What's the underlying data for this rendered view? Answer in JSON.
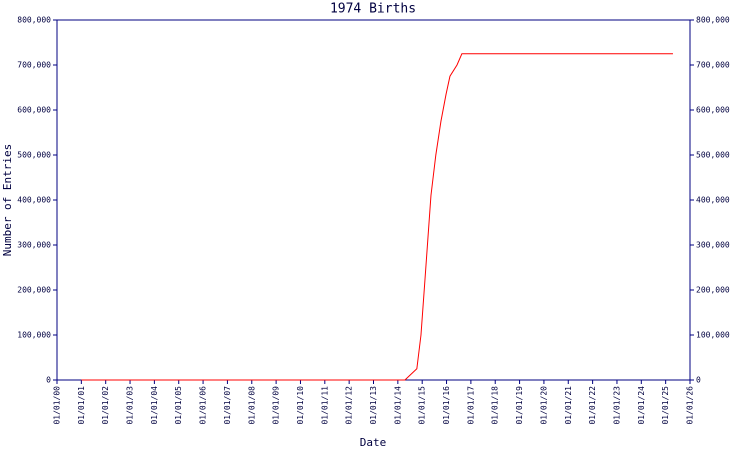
{
  "chart_data": {
    "type": "line",
    "title": "1974 Births",
    "xlabel": "Date",
    "ylabel": "Number of Entries",
    "x": [
      2001.0,
      2014.29,
      2014.78,
      2014.95,
      2015.11,
      2015.36,
      2015.56,
      2015.77,
      2015.98,
      2016.14,
      2016.43,
      2016.63,
      2025.3
    ],
    "values": [
      0,
      0,
      25000,
      100000,
      220000,
      410000,
      500000,
      575000,
      635000,
      675000,
      700000,
      725000,
      725000
    ],
    "color": "#ff0000",
    "xlim": [
      2000,
      2026
    ],
    "xticks": [
      {
        "value": 2000,
        "label": "01/01/00"
      },
      {
        "value": 2001,
        "label": "01/01/01"
      },
      {
        "value": 2002,
        "label": "01/01/02"
      },
      {
        "value": 2003,
        "label": "01/01/03"
      },
      {
        "value": 2004,
        "label": "01/01/04"
      },
      {
        "value": 2005,
        "label": "01/01/05"
      },
      {
        "value": 2006,
        "label": "01/01/06"
      },
      {
        "value": 2007,
        "label": "01/01/07"
      },
      {
        "value": 2008,
        "label": "01/01/08"
      },
      {
        "value": 2009,
        "label": "01/01/09"
      },
      {
        "value": 2010,
        "label": "01/01/10"
      },
      {
        "value": 2011,
        "label": "01/01/11"
      },
      {
        "value": 2012,
        "label": "01/01/12"
      },
      {
        "value": 2013,
        "label": "01/01/13"
      },
      {
        "value": 2014,
        "label": "01/01/14"
      },
      {
        "value": 2015,
        "label": "01/01/15"
      },
      {
        "value": 2016,
        "label": "01/01/16"
      },
      {
        "value": 2017,
        "label": "01/01/17"
      },
      {
        "value": 2018,
        "label": "01/01/18"
      },
      {
        "value": 2019,
        "label": "01/01/19"
      },
      {
        "value": 2020,
        "label": "01/01/20"
      },
      {
        "value": 2021,
        "label": "01/01/21"
      },
      {
        "value": 2022,
        "label": "01/01/22"
      },
      {
        "value": 2023,
        "label": "01/01/23"
      },
      {
        "value": 2024,
        "label": "01/01/24"
      },
      {
        "value": 2025,
        "label": "01/01/25"
      },
      {
        "value": 2026,
        "label": "01/01/26"
      }
    ],
    "ylim": [
      0,
      800000
    ],
    "yticks": [
      0,
      {
        "value": 100000,
        "label": "100,000"
      },
      {
        "value": 200000,
        "label": "200,000"
      },
      {
        "value": 300000,
        "label": "300,000"
      },
      {
        "value": 400000,
        "label": "400,000"
      },
      {
        "value": 500000,
        "label": "500,000"
      },
      {
        "value": 600000,
        "label": "600,000"
      },
      {
        "value": 700000,
        "label": "700,000"
      },
      {
        "value": 800000,
        "label": "800,000"
      }
    ],
    "y2lim": [
      0,
      800000
    ],
    "y2ticks": [
      0,
      {
        "value": 100000,
        "label": "100,000"
      },
      {
        "value": 200000,
        "label": "200,000"
      },
      {
        "value": 300000,
        "label": "300,000"
      },
      {
        "value": 400000,
        "label": "400,000"
      },
      {
        "value": 500000,
        "label": "500,000"
      },
      {
        "value": 600000,
        "label": "600,000"
      },
      {
        "value": 700000,
        "label": "700,000"
      },
      {
        "value": 800000,
        "label": "800,000"
      }
    ],
    "grid": false
  }
}
